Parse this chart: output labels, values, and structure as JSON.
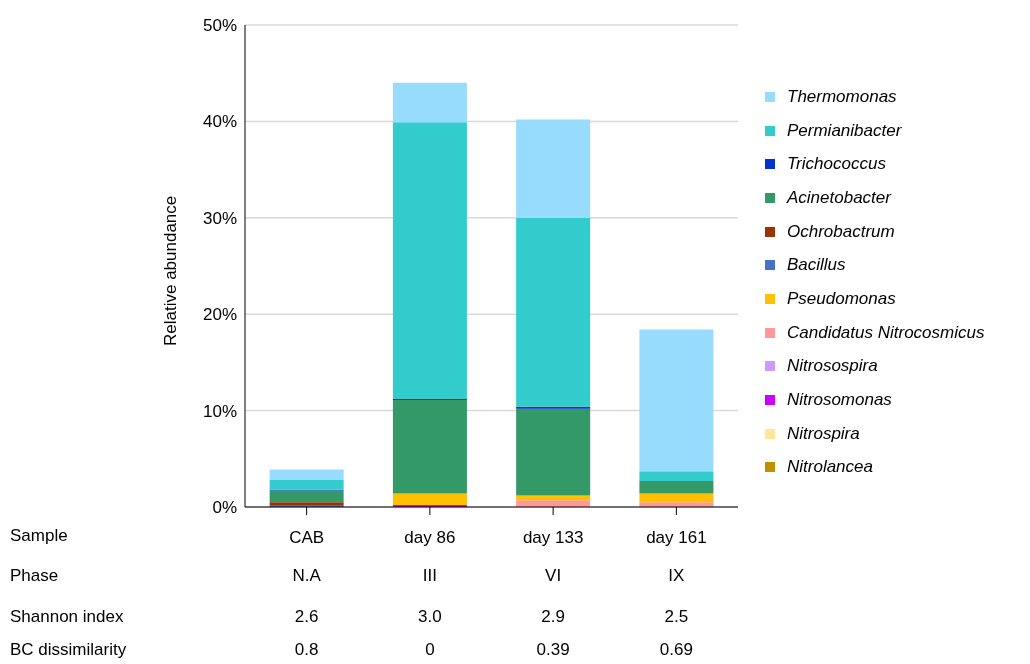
{
  "chart_data": {
    "type": "bar",
    "stacked": true,
    "ylabel": "Relative abundance",
    "categories": [
      "CAB",
      "day 86",
      "day 133",
      "day 161"
    ],
    "ylim": [
      0,
      50
    ],
    "yticks": [
      {
        "value": 0,
        "label": "0%"
      },
      {
        "value": 10,
        "label": "10%"
      },
      {
        "value": 20,
        "label": "20%"
      },
      {
        "value": 30,
        "label": "30%"
      },
      {
        "value": 40,
        "label": "40%"
      },
      {
        "value": 50,
        "label": "50%"
      }
    ],
    "grid": "y",
    "legend": "right",
    "series": [
      {
        "name": "Nitrolancea",
        "color": "#bf9000",
        "values": [
          0,
          0,
          0,
          0
        ]
      },
      {
        "name": "Nitrospira",
        "color": "#ffe699",
        "values": [
          0,
          0,
          0,
          0
        ]
      },
      {
        "name": "Nitrosomonas",
        "color": "#cc00ff",
        "values": [
          0,
          0.2,
          0,
          0
        ]
      },
      {
        "name": "Nitrosospira",
        "color": "#cc99ff",
        "values": [
          0,
          0,
          0,
          0
        ]
      },
      {
        "name": "Candidatus Nitrocosmicus",
        "color": "#ff9999",
        "values": [
          0,
          0,
          0.7,
          0.5
        ]
      },
      {
        "name": "Pseudomonas",
        "color": "#ffc000",
        "values": [
          0,
          1.2,
          0.5,
          0.9
        ]
      },
      {
        "name": "Bacillus",
        "color": "#4472c4",
        "values": [
          0.2,
          0,
          0,
          0
        ]
      },
      {
        "name": "Ochrobactrum",
        "color": "#993300",
        "values": [
          0.3,
          0,
          0,
          0
        ]
      },
      {
        "name": "Acinetobacter",
        "color": "#339966",
        "values": [
          1.2,
          9.7,
          9.0,
          1.3
        ]
      },
      {
        "name": "Trichococcus",
        "color": "#0033cc",
        "values": [
          0.1,
          0.1,
          0.2,
          0
        ]
      },
      {
        "name": "Permianibacter",
        "color": "#33cccc",
        "values": [
          1.0,
          28.7,
          19.6,
          1.0
        ]
      },
      {
        "name": "Thermomonas",
        "color": "#97dbfd",
        "values": [
          1.1,
          4.1,
          10.2,
          14.7
        ]
      }
    ],
    "annotations": [
      "Sample",
      "Phase",
      "N.A",
      "III",
      "VI",
      "IX",
      "Shannon index",
      "2.6",
      "3.0",
      "2.9",
      "2.5",
      "BC dissimilarity",
      "0.8",
      "0",
      "0.39",
      "0.69"
    ]
  }
}
